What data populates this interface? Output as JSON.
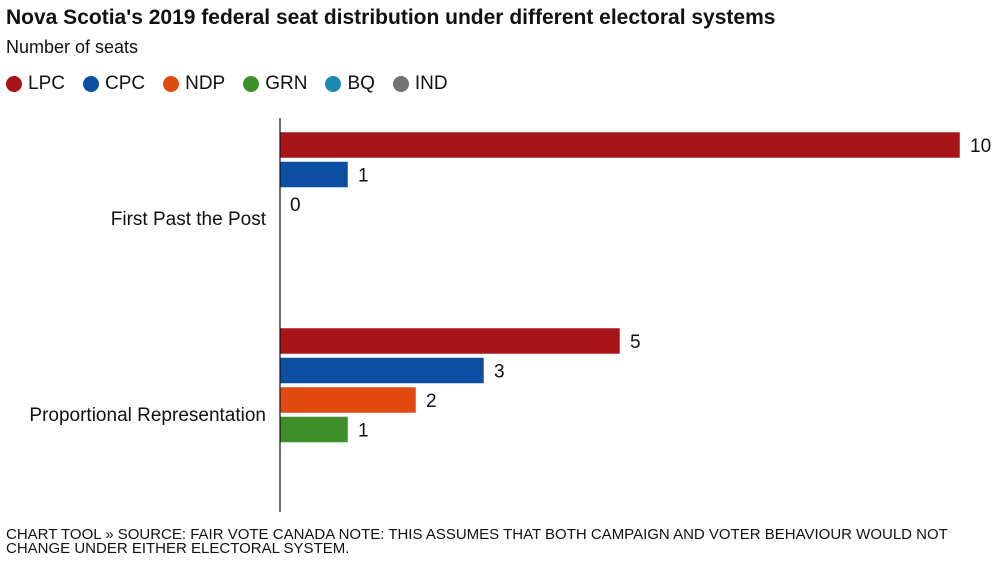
{
  "chart_data": {
    "type": "bar",
    "orientation": "horizontal",
    "title": "Nova Scotia's 2019 federal seat distribution under different electoral systems",
    "subtitle": "Number of seats",
    "categories": [
      "First Past the Post",
      "Proportional Representation"
    ],
    "series": [
      {
        "name": "LPC",
        "color": "#a8141a",
        "values": [
          10,
          5
        ]
      },
      {
        "name": "CPC",
        "color": "#0b4ea2",
        "values": [
          1,
          3
        ]
      },
      {
        "name": "NDP",
        "color": "#e04a0f",
        "values": [
          0,
          2
        ]
      },
      {
        "name": "GRN",
        "color": "#3e8f2a",
        "values": [
          null,
          1
        ]
      },
      {
        "name": "BQ",
        "color": "#1a8ab0",
        "values": [
          null,
          null
        ]
      },
      {
        "name": "IND",
        "color": "#737373",
        "values": [
          null,
          null
        ]
      }
    ],
    "xlim": [
      0,
      10
    ],
    "legend": "top-left",
    "grid": false
  },
  "footer": "Chart tool » Source: Fair Vote Canada Note: This assumes that both campaign and voter behaviour would not change under either electoral system."
}
